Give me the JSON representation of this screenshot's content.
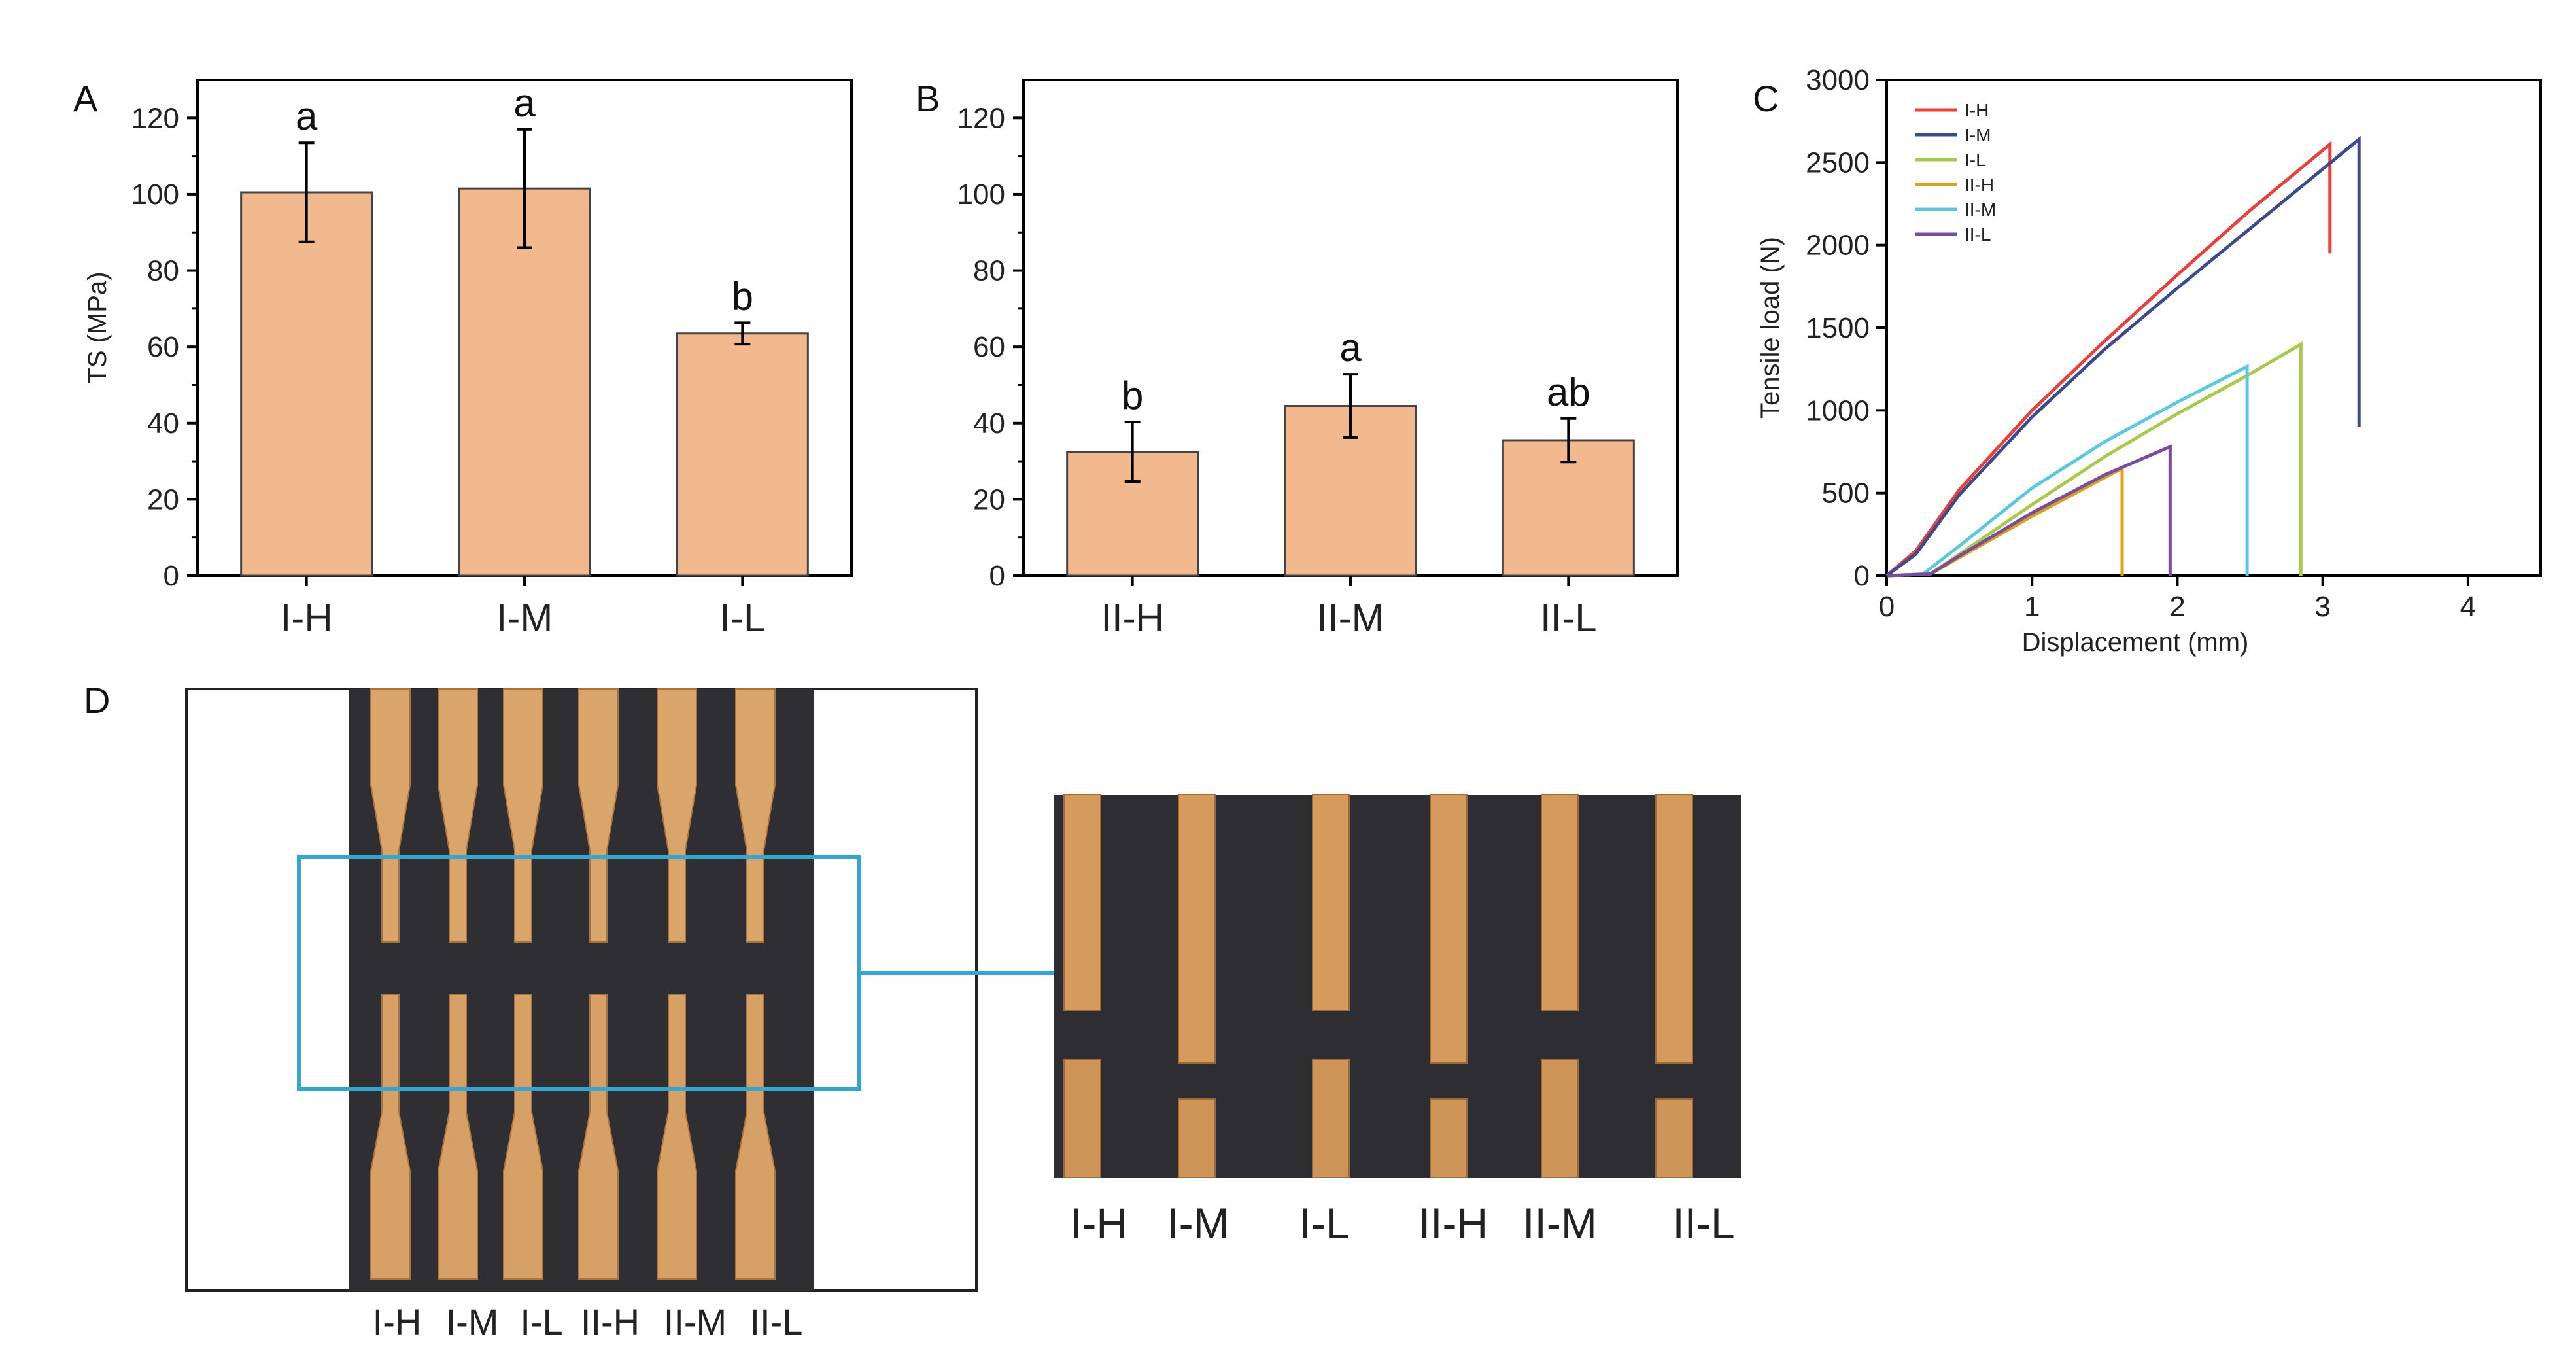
{
  "panels": {
    "a": "A",
    "b": "B",
    "c": "C",
    "d": "D"
  },
  "chart_data": [
    {
      "panel": "A",
      "type": "bar",
      "ylabel": "TS (MPa)",
      "xlabel": "",
      "ylim": [
        0,
        130
      ],
      "yticks": [
        0,
        20,
        40,
        60,
        80,
        100,
        120
      ],
      "categories": [
        "I-H",
        "I-M",
        "I-L"
      ],
      "values": [
        100.5,
        101.5,
        63.5
      ],
      "errors": [
        13,
        15.5,
        2.8
      ],
      "significance": [
        "a",
        "a",
        "b"
      ],
      "bar_color": "#f2b98e"
    },
    {
      "panel": "B",
      "type": "bar",
      "ylabel": "",
      "xlabel": "",
      "ylim": [
        0,
        130
      ],
      "yticks": [
        0,
        20,
        40,
        60,
        80,
        100,
        120
      ],
      "categories": [
        "II-H",
        "II-M",
        "II-L"
      ],
      "values": [
        32.5,
        44.5,
        35.5
      ],
      "errors": [
        7.8,
        8.3,
        5.7
      ],
      "significance": [
        "b",
        "a",
        "ab"
      ],
      "bar_color": "#f2b98e"
    },
    {
      "panel": "C",
      "type": "line",
      "xlabel": "Displacement (mm)",
      "ylabel": "Tensile load (N)",
      "xlim": [
        0,
        4.5
      ],
      "ylim": [
        0,
        3000
      ],
      "xticks": [
        0,
        1,
        2,
        3,
        4
      ],
      "yticks": [
        0,
        500,
        1000,
        1500,
        2000,
        2500,
        3000
      ],
      "legend_position": "top-left",
      "series": [
        {
          "name": "I-H",
          "color": "#e8403a",
          "x": [
            0,
            0.2,
            0.5,
            1.0,
            1.5,
            2.0,
            2.5,
            3.05,
            3.05
          ],
          "y": [
            0,
            150,
            520,
            1000,
            1420,
            1820,
            2210,
            2610,
            1950
          ]
        },
        {
          "name": "I-M",
          "color": "#3d4a8c",
          "x": [
            0,
            0.2,
            0.5,
            1.0,
            1.5,
            2.0,
            2.5,
            3.25,
            3.25
          ],
          "y": [
            0,
            130,
            490,
            960,
            1370,
            1740,
            2100,
            2640,
            900
          ]
        },
        {
          "name": "I-L",
          "color": "#a9c94b",
          "x": [
            0,
            0.3,
            0.5,
            1.0,
            1.5,
            2.0,
            2.5,
            2.85,
            2.85
          ],
          "y": [
            0,
            10,
            130,
            430,
            720,
            980,
            1220,
            1400,
            0
          ]
        },
        {
          "name": "II-H",
          "color": "#d9a21b",
          "x": [
            0,
            0.3,
            0.5,
            1.0,
            1.3,
            1.62,
            1.62
          ],
          "y": [
            0,
            10,
            110,
            360,
            500,
            650,
            0
          ]
        },
        {
          "name": "II-M",
          "color": "#5cc8e0",
          "x": [
            0,
            0.25,
            0.5,
            1.0,
            1.5,
            2.0,
            2.48,
            2.48
          ],
          "y": [
            0,
            10,
            180,
            530,
            810,
            1050,
            1265,
            0
          ]
        },
        {
          "name": "II-L",
          "color": "#7a4c9e",
          "x": [
            0,
            0.3,
            0.5,
            1.0,
            1.5,
            1.95,
            1.95
          ],
          "y": [
            0,
            10,
            120,
            380,
            610,
            780,
            0
          ]
        }
      ]
    }
  ],
  "photo": {
    "left_labels": [
      "I-H",
      "I-M",
      "I-L",
      "II-H",
      "II-M",
      "II-L"
    ],
    "right_labels": [
      "I-H",
      "I-M",
      "I-L",
      "II-H",
      "II-M",
      "II-L"
    ],
    "highlight_color": "#35a6cf"
  }
}
